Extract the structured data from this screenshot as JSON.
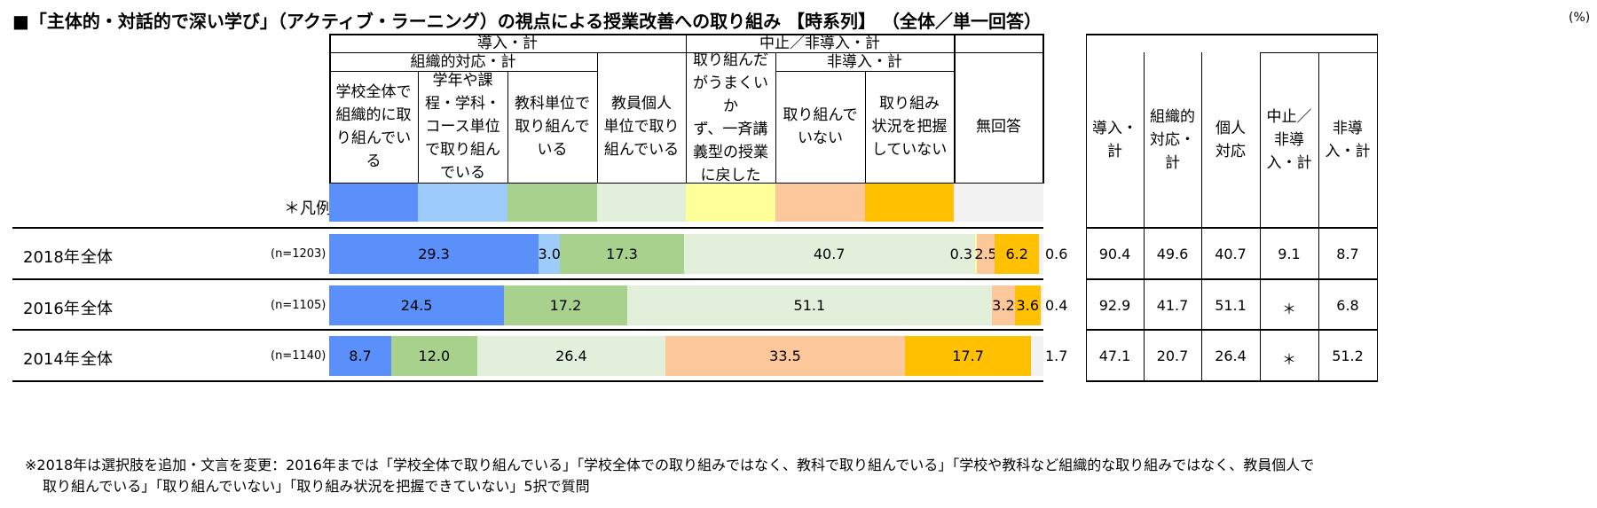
{
  "title": "■「主体的・対話的で深い学び」（アクティブ・ラーニング）の視点による授業改善への取り組み 【時系列】 （全体／単一回答）",
  "unit": "(%)",
  "header": {
    "group_intro": "導入・計",
    "group_org": "組織的対応・計",
    "group_stop": "中止／非導入・計",
    "group_nonintro": "非導入・計",
    "legend_label": "＊凡例",
    "categories": [
      "学校全体で\n組織的に取\nり組んでい\nる",
      "学年や課\n程・学科・\nコース単位\nで取り組ん\nでいる",
      "教科単位で\n取り組んで\nいる",
      "教員個人\n単位で取り\n組んでいる",
      "取り組んだ\nがうまくいか\nず、一斉講\n義型の授業\nに戻した",
      "取り組んで\nいない",
      "取り組み\n状況を把握\nしていない",
      "無回答"
    ],
    "summary_headers": [
      "導入・\n計",
      "組織的\n対応・\n計",
      "個人\n対応",
      "中止／\n非導\n入・計",
      "非導\n入・計"
    ]
  },
  "colors": [
    "#5b8ff9",
    "#9dccfa",
    "#a9d18e",
    "#e2efda",
    "#ffff99",
    "#fcc89b",
    "#ffc000",
    "#f2f2f2"
  ],
  "chart_data": {
    "type": "bar",
    "orientation": "horizontal-stacked",
    "series_names": [
      "学校全体で組織的に取り組んでいる",
      "学年や課程・学科・コース単位で取り組んでいる",
      "教科単位で取り組んでいる",
      "教員個人単位で取り組んでいる",
      "取り組んだがうまくいかず、一斉講義型の授業に戻した",
      "取り組んでいない",
      "取り組み状況を把握していない",
      "無回答"
    ],
    "rows": [
      {
        "year": "2018年",
        "group": "全体",
        "n": "(n=1203)",
        "values": [
          29.3,
          3.0,
          17.3,
          40.7,
          0.3,
          2.5,
          6.2,
          0.6
        ],
        "labels": [
          "29.3",
          "3.0",
          "17.3",
          "40.7",
          "0.3",
          "2.5",
          "6.2",
          "0.6"
        ],
        "summary": [
          "90.4",
          "49.6",
          "40.7",
          "9.1",
          "8.7"
        ]
      },
      {
        "year": "2016年",
        "group": "全体",
        "n": "(n=1105)",
        "values": [
          24.5,
          0,
          17.2,
          51.1,
          0,
          3.2,
          3.6,
          0.4
        ],
        "labels": [
          "24.5",
          "",
          "17.2",
          "51.1",
          "",
          "3.2",
          "3.6",
          "0.4"
        ],
        "summary": [
          "92.9",
          "41.7",
          "51.1",
          "＊",
          "6.8"
        ]
      },
      {
        "year": "2014年",
        "group": "全体",
        "n": "(n=1140)",
        "values": [
          8.7,
          0,
          12.0,
          26.4,
          0,
          33.5,
          17.7,
          1.7
        ],
        "labels": [
          "8.7",
          "",
          "12.0",
          "26.4",
          "",
          "33.5",
          "17.7",
          "1.7"
        ],
        "summary": [
          "47.1",
          "20.7",
          "26.4",
          "＊",
          "51.2"
        ]
      }
    ],
    "xlim": [
      0,
      100
    ]
  },
  "note_line1": "※2018年は選択肢を追加・文言を変更：2016年までは「学校全体で取り組んでいる」「学校全体での取り組みではなく、教科で取り組んでいる」「学校や教科など組織的な取り組みではなく、教員個人で",
  "note_line2": "取り組んでいる」「取り組んでいない」「取り組み状況を把握できていない」5択で質問"
}
